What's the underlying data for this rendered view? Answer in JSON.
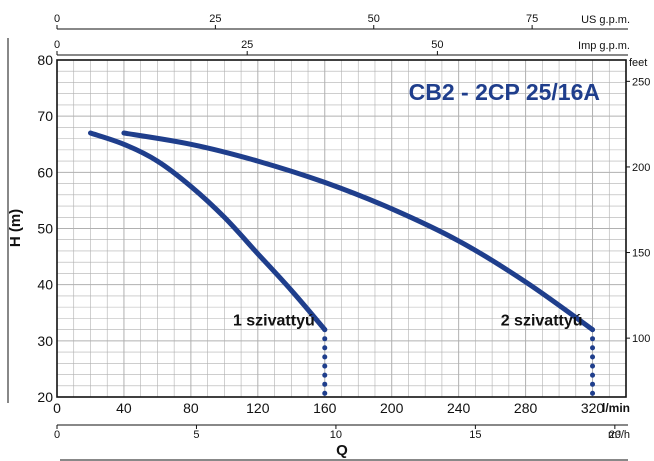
{
  "chart_data": {
    "type": "line",
    "title": "CB2 - 2CP 25/16A",
    "xlabel": "Q",
    "ylabel": "H (m)",
    "x_unit": "l/min",
    "xlim": [
      0,
      340
    ],
    "ylim": [
      20,
      80
    ],
    "x_ticks": [
      0,
      40,
      80,
      120,
      160,
      200,
      240,
      280,
      320
    ],
    "y_ticks": [
      20,
      30,
      40,
      50,
      60,
      70,
      80
    ],
    "grid": true,
    "secondary_axes": {
      "us_gpm": {
        "label": "US g.p.m.",
        "ticks": [
          0,
          25,
          50,
          75
        ]
      },
      "imp_gpm": {
        "label": "Imp g.p.m.",
        "ticks": [
          0,
          25,
          50
        ]
      },
      "m3h": {
        "label": "m³/h",
        "ticks": [
          0,
          5,
          10,
          15,
          20
        ]
      },
      "feet": {
        "label": "feet",
        "ticks": [
          100,
          150,
          200,
          250
        ]
      }
    },
    "series": [
      {
        "name": "1 szivattyú",
        "x": [
          20,
          40,
          60,
          80,
          100,
          120,
          140,
          160
        ],
        "y": [
          67,
          65,
          62,
          57.5,
          52,
          45.5,
          39,
          32
        ]
      },
      {
        "name": "2 szivattyú",
        "x": [
          40,
          80,
          120,
          160,
          200,
          240,
          280,
          320
        ],
        "y": [
          67,
          65,
          62,
          58.2,
          53.5,
          47.8,
          40.5,
          32
        ]
      }
    ],
    "colors": {
      "curve": "#1f3e8c",
      "grid": "#b0b0b0",
      "axis": "#111111"
    }
  }
}
